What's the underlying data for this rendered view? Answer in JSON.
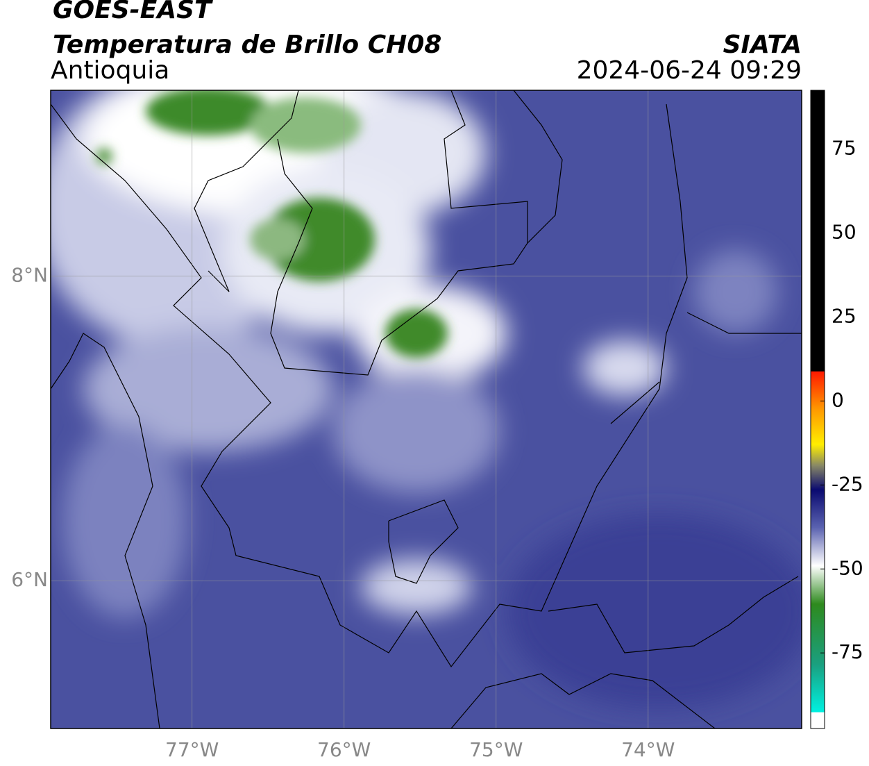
{
  "header": {
    "satellite": "GOES-EAST",
    "product": "Temperatura de Brillo CH08",
    "region": "Antioquia",
    "source": "SIATA",
    "datetime": "2024-06-24 09:29"
  },
  "chart_data": {
    "type": "map",
    "xlim": [
      -77.93,
      -72.99
    ],
    "ylim": [
      5.03,
      9.22
    ],
    "xticks": [
      {
        "value": -77,
        "label": "77°W"
      },
      {
        "value": -76,
        "label": "76°W"
      },
      {
        "value": -75,
        "label": "75°W"
      },
      {
        "value": -74,
        "label": "74°W"
      }
    ],
    "yticks": [
      {
        "value": 6,
        "label": "6°N"
      },
      {
        "value": 8,
        "label": "8°N"
      }
    ],
    "grid": true,
    "colorbar": {
      "lim": [
        -97.5,
        92.5
      ],
      "ticks": [
        -75,
        -50,
        -25,
        0,
        25,
        50,
        75
      ]
    }
  }
}
